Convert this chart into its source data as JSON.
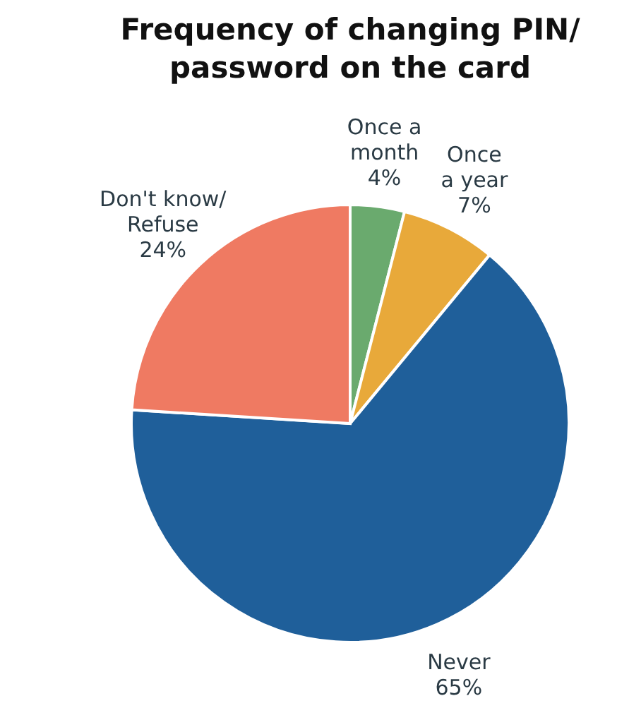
{
  "chart_data": {
    "type": "pie",
    "title": "Frequency of changing PIN/\npassword on the card",
    "categories": [
      "Once a\nmonth",
      "Once\na year",
      "Never",
      "Don't know/\nRefuse"
    ],
    "values": [
      4,
      7,
      65,
      24
    ],
    "colors": [
      "#6aaa6e",
      "#e8a93a",
      "#1f5f9a",
      "#ef7a62"
    ],
    "value_labels": [
      "4%",
      "7%",
      "65%",
      "24%"
    ]
  }
}
